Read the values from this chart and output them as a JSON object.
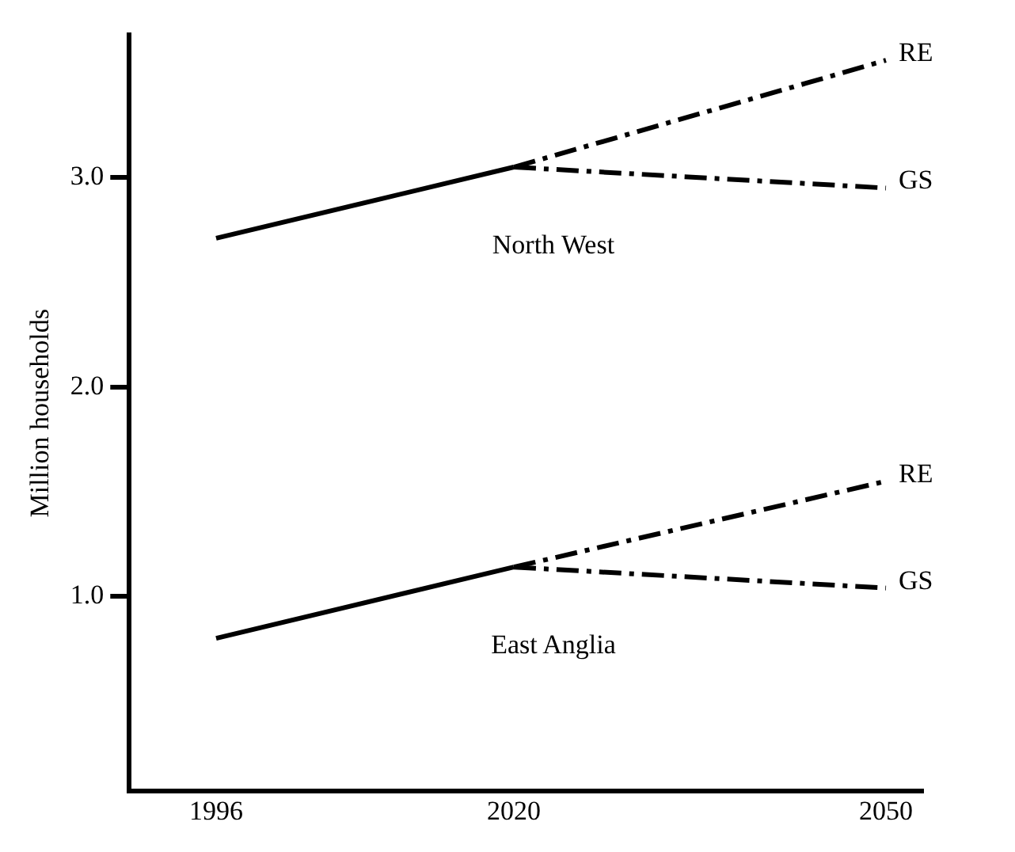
{
  "chart_data": {
    "type": "line",
    "ylabel": "Million households",
    "x": [
      1996,
      2020,
      2050
    ],
    "xlim": [
      1989,
      2053
    ],
    "xticks": [
      1996,
      2020,
      2050
    ],
    "ylim": [
      0.07,
      3.68
    ],
    "yticks": [
      {
        "value": 1,
        "label": "1.0"
      },
      {
        "value": 2,
        "label": "2.0"
      },
      {
        "value": 3,
        "label": "3.0"
      }
    ],
    "grid": false,
    "legend": false,
    "marker": "none",
    "series": [
      {
        "color": "#000000",
        "line_style": "solid",
        "values": [
          2.71,
          3.05,
          null
        ]
      },
      {
        "name": "RE",
        "color": "#000000",
        "line_style": "dashed",
        "values": [
          null,
          3.05,
          3.56
        ]
      },
      {
        "name": "GS",
        "color": "#000000",
        "line_style": "dashed",
        "values": [
          null,
          3.05,
          2.95
        ]
      },
      {
        "color": "#000000",
        "line_style": "solid",
        "values": [
          0.8,
          1.14,
          null
        ]
      },
      {
        "name": "RE",
        "color": "#000000",
        "line_style": "dashed",
        "values": [
          null,
          1.14,
          1.55
        ]
      },
      {
        "name": "GS",
        "color": "#000000",
        "line_style": "dashed",
        "values": [
          null,
          1.14,
          1.04
        ]
      }
    ],
    "annotations": [
      "North West",
      "East Anglia"
    ]
  }
}
